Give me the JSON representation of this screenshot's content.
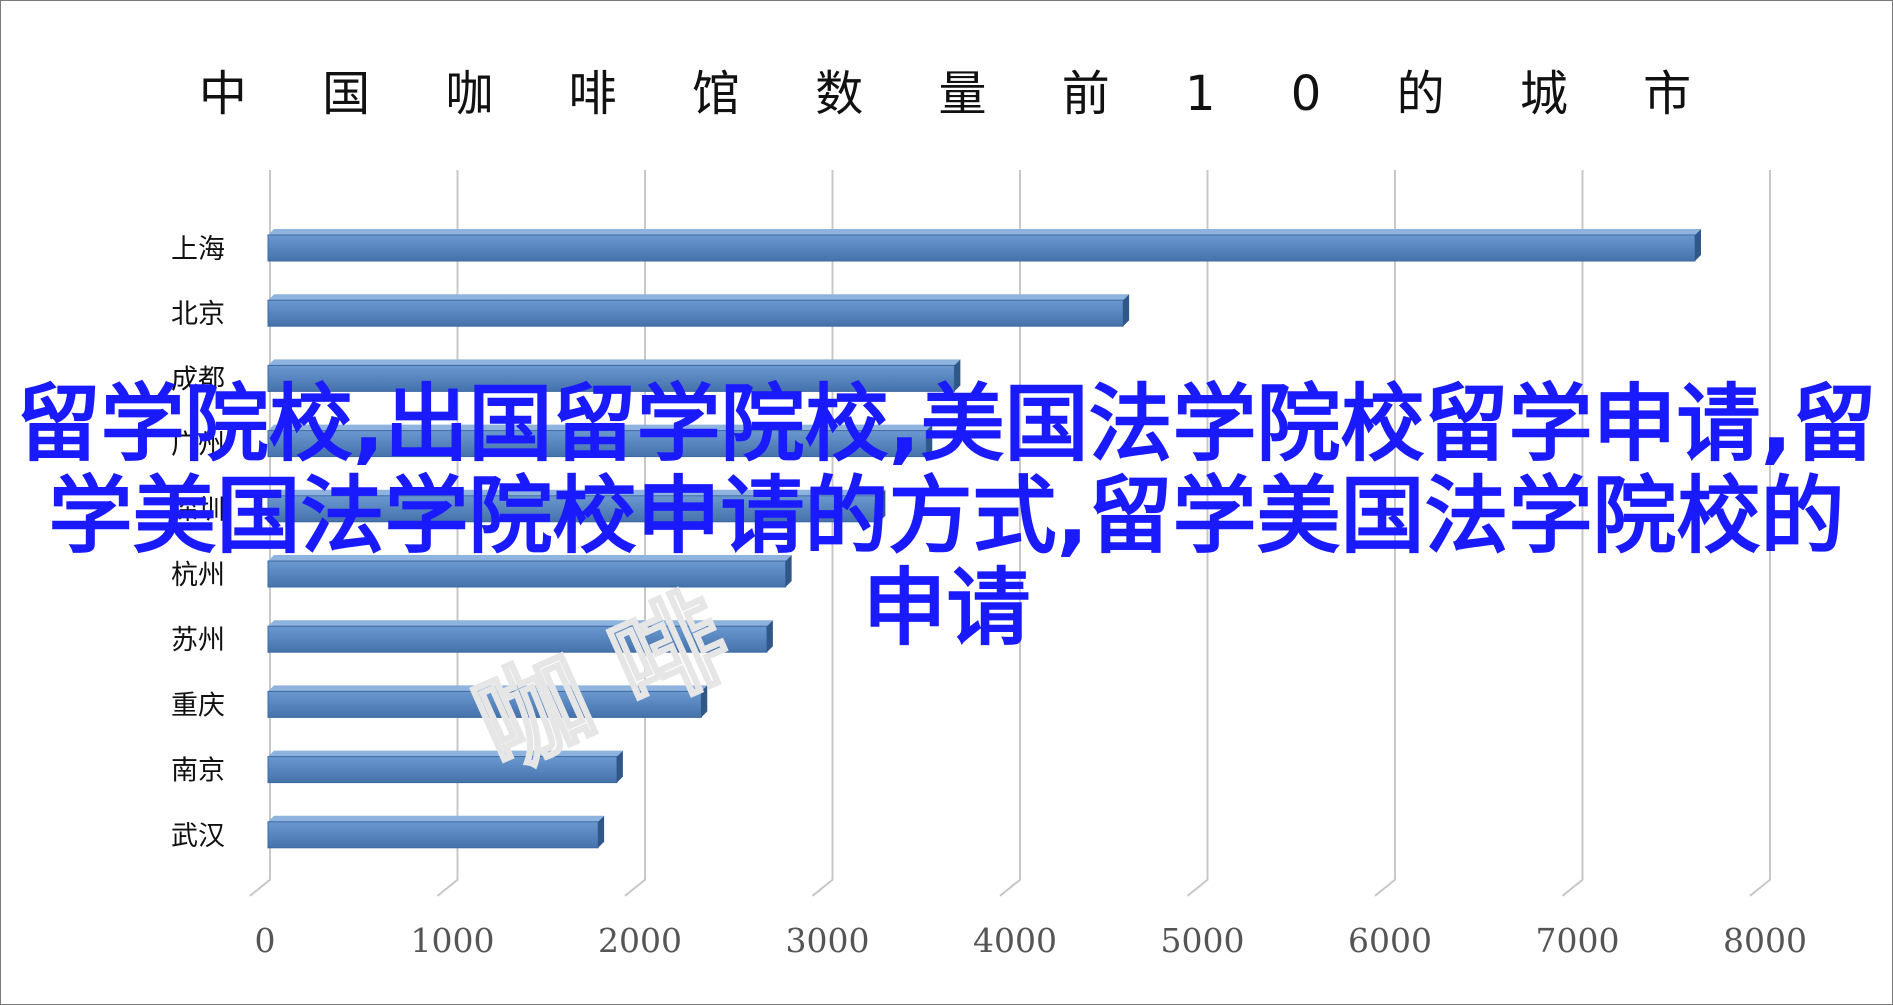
{
  "chart_data": {
    "type": "bar",
    "orientation": "horizontal",
    "title": "中 国 咖 啡 馆 数 量 前 1 0 的 城 市",
    "categories": [
      "上海",
      "北京",
      "成都",
      "广州",
      "深圳",
      "杭州",
      "苏州",
      "重庆",
      "南京",
      "武汉"
    ],
    "values": [
      7600,
      4550,
      3650,
      3500,
      3250,
      2750,
      2650,
      2300,
      1850,
      1750
    ],
    "xlim": [
      0,
      8000
    ],
    "x_ticks": [
      "0",
      "1000",
      "2000",
      "3000",
      "4000",
      "5000",
      "6000",
      "7000",
      "8000"
    ],
    "grid": true,
    "legend": "none",
    "bar_color": "#4f81bd"
  },
  "overlay": {
    "text": "留学院校,出国留学院校,美国法学院校留学申请,留学美国法学院校申请的方式,留学美国法学院校的申请",
    "color": "#1a1aff"
  },
  "watermark": "咖 啡"
}
